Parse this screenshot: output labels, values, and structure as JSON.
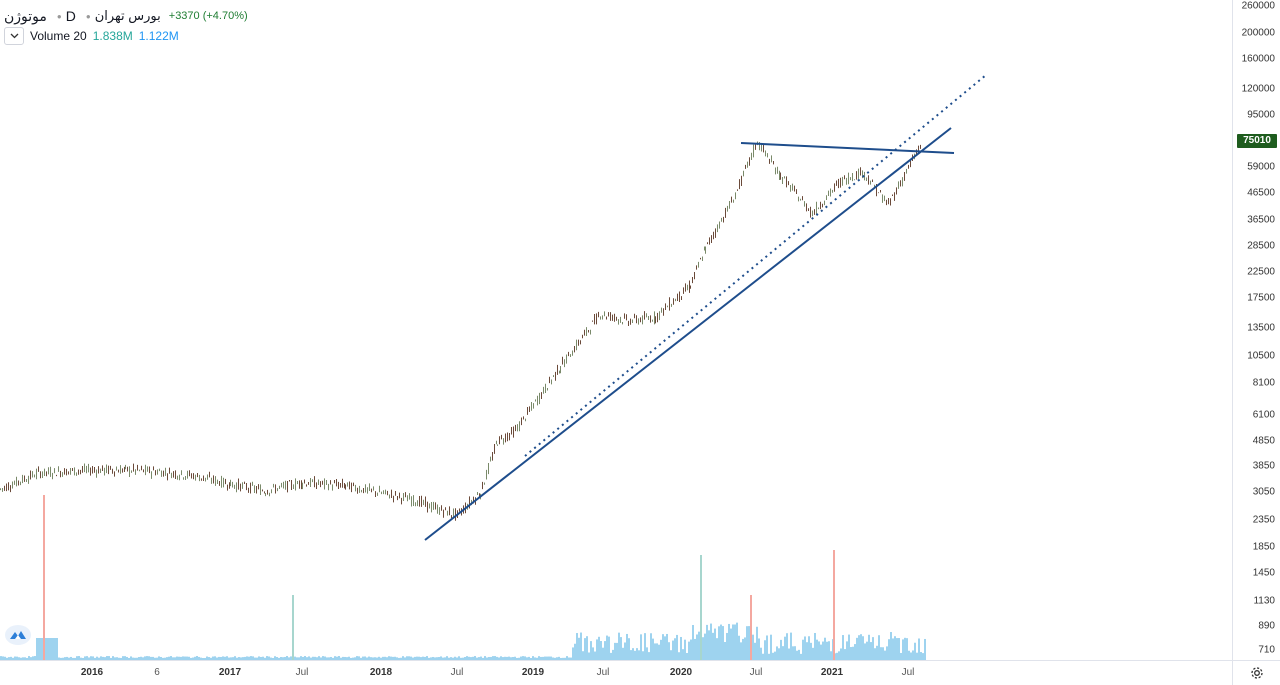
{
  "legend": {
    "symbol_name": "موتوژن",
    "interval": "D",
    "exchange": "بورس تهران",
    "change": "+3370 (+4.70%)",
    "volume_label": "Volume 20",
    "volume_value_1": "1.838M",
    "volume_value_2": "1.122M"
  },
  "price_axis": {
    "ticks": [
      "260000",
      "200000",
      "160000",
      "120000",
      "95000",
      "59000",
      "46500",
      "36500",
      "28500",
      "22500",
      "17500",
      "13500",
      "10500",
      "8100",
      "6100",
      "4850",
      "3850",
      "3050",
      "2350",
      "1850",
      "1450",
      "1130",
      "890",
      "710"
    ],
    "last_price": "75010"
  },
  "time_axis": {
    "ticks": [
      {
        "label": "2016",
        "major": true
      },
      {
        "label": "6",
        "major": false
      },
      {
        "label": "2017",
        "major": true
      },
      {
        "label": "Jul",
        "major": false
      },
      {
        "label": "2018",
        "major": true
      },
      {
        "label": "Jul",
        "major": false
      },
      {
        "label": "2019",
        "major": true
      },
      {
        "label": "Jul",
        "major": false
      },
      {
        "label": "2020",
        "major": true
      },
      {
        "label": "Jul",
        "major": false
      },
      {
        "label": "2021",
        "major": true
      },
      {
        "label": "Jul",
        "major": false
      }
    ]
  },
  "colors": {
    "up": "#26a69a",
    "down": "#ef5350",
    "candle_body": "#6b4a3a",
    "trendline": "#1e4d8c",
    "volume": "#7ec4ea",
    "last_price_tag": "#1e5c1e"
  },
  "icons": {
    "collapse": "chevron-down-icon",
    "settings": "gear-icon",
    "logo": "tradingview-logo-icon"
  },
  "chart_data": {
    "type": "candlestick",
    "title": "",
    "y_scale": "log",
    "ylim": [
      650,
      280000
    ],
    "series": [
      {
        "name": "",
        "x": [
          "2015-06",
          "2015-09",
          "2016-01",
          "2016-04",
          "2016-06",
          "2016-09",
          "2017-01",
          "2017-04",
          "2017-07",
          "2017-10",
          "2018-01",
          "2018-04",
          "2018-06",
          "2018-09",
          "2018-11",
          "2019-01",
          "2019-03",
          "2019-05",
          "2019-07",
          "2019-09",
          "2019-11",
          "2020-01",
          "2020-03",
          "2020-05",
          "2020-07",
          "2020-09",
          "2020-11",
          "2021-01",
          "2021-03",
          "2021-05",
          "2021-07",
          "2021-08"
        ],
        "values": [
          3100,
          3600,
          3700,
          3700,
          3650,
          3500,
          3250,
          3050,
          3300,
          3200,
          3000,
          2800,
          2600,
          2450,
          3000,
          4800,
          5300,
          9500,
          15500,
          14500,
          15000,
          20000,
          28000,
          46000,
          75000,
          55000,
          39000,
          52000,
          57000,
          42000,
          63000,
          75010
        ]
      }
    ],
    "volume": {
      "name": "Volume 20",
      "values": [
        "1.838M",
        "1.122M"
      ]
    }
  }
}
